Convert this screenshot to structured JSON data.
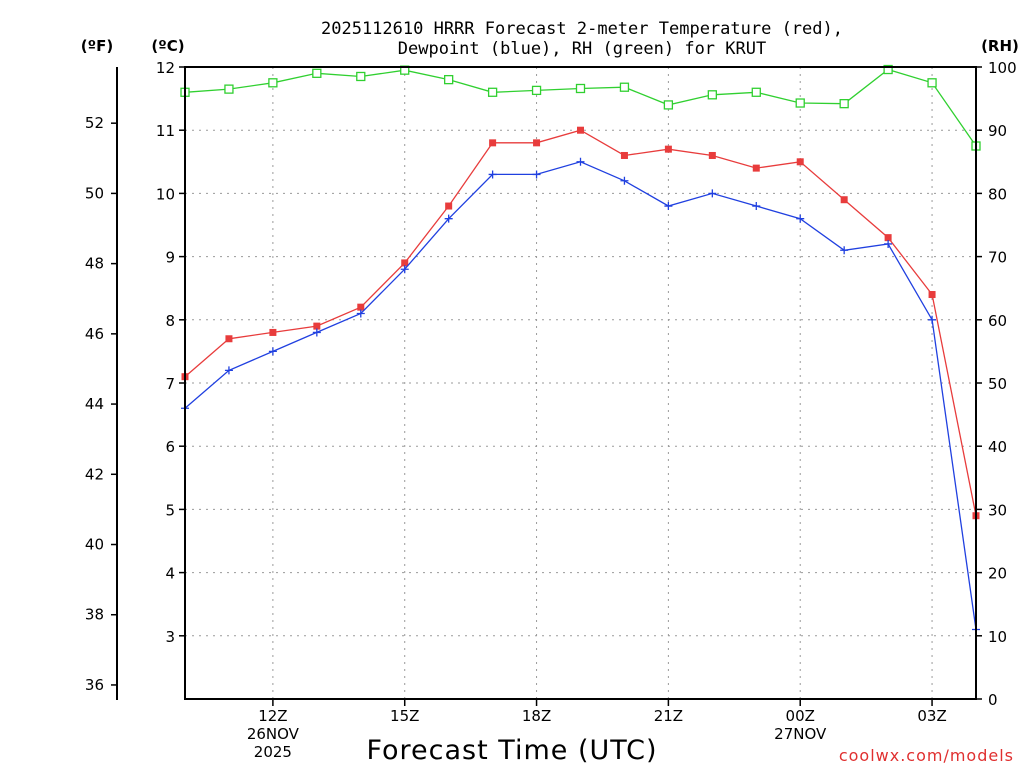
{
  "chart_data": {
    "type": "line",
    "title_lines": [
      "2025112610 HRRR Forecast 2-meter Temperature (red),",
      "Dewpoint (blue), RH (green) for KRUT"
    ],
    "xlabel": "Forecast Time (UTC)",
    "credit": "coolwx.com/models",
    "axes": {
      "fahrenheit": {
        "label": "(ºF)",
        "ticks": [
          36,
          38,
          40,
          42,
          44,
          46,
          48,
          50,
          52
        ]
      },
      "celsius": {
        "label": "(ºC)",
        "range": [
          2,
          12
        ],
        "ticks": [
          3,
          4,
          5,
          6,
          7,
          8,
          9,
          10,
          11,
          12
        ]
      },
      "rh": {
        "label": "(RH)",
        "range": [
          0,
          100
        ],
        "ticks": [
          0,
          10,
          20,
          30,
          40,
          50,
          60,
          70,
          80,
          90,
          100
        ]
      }
    },
    "x_hours": [
      10,
      11,
      12,
      13,
      14,
      15,
      16,
      17,
      18,
      19,
      20,
      21,
      22,
      23,
      24,
      25,
      26,
      27,
      28
    ],
    "x_range": [
      10,
      28
    ],
    "x_ticks": [
      {
        "hour": 12,
        "lines": [
          "12Z",
          "26NOV",
          "2025"
        ]
      },
      {
        "hour": 15,
        "lines": [
          "15Z"
        ]
      },
      {
        "hour": 18,
        "lines": [
          "18Z"
        ]
      },
      {
        "hour": 21,
        "lines": [
          "21Z"
        ]
      },
      {
        "hour": 24,
        "lines": [
          "00Z",
          "27NOV"
        ]
      },
      {
        "hour": 27,
        "lines": [
          "03Z"
        ]
      }
    ],
    "series": [
      {
        "name": "Temperature",
        "color": "#e83c3c",
        "marker": "filled-square",
        "values": [
          7.1,
          7.7,
          7.8,
          7.9,
          8.2,
          8.9,
          9.8,
          10.8,
          10.8,
          11.0,
          10.6,
          10.7,
          10.6,
          10.4,
          10.5,
          9.9,
          9.3,
          8.4,
          4.9
        ]
      },
      {
        "name": "Dewpoint",
        "color": "#2040e0",
        "marker": "plus",
        "values": [
          6.6,
          7.2,
          7.5,
          7.8,
          8.1,
          8.8,
          9.6,
          10.3,
          10.3,
          10.5,
          10.2,
          9.8,
          10.0,
          9.8,
          9.6,
          9.1,
          9.2,
          8.0,
          3.1
        ]
      },
      {
        "name": "RH",
        "color": "#30d030",
        "marker": "open-square",
        "values": [
          96,
          96.5,
          97.5,
          99,
          98.5,
          99.5,
          98,
          96,
          96.3,
          96.6,
          96.8,
          94,
          95.6,
          96,
          94.3,
          94.2,
          99.6,
          97.5,
          87.5
        ]
      }
    ]
  }
}
